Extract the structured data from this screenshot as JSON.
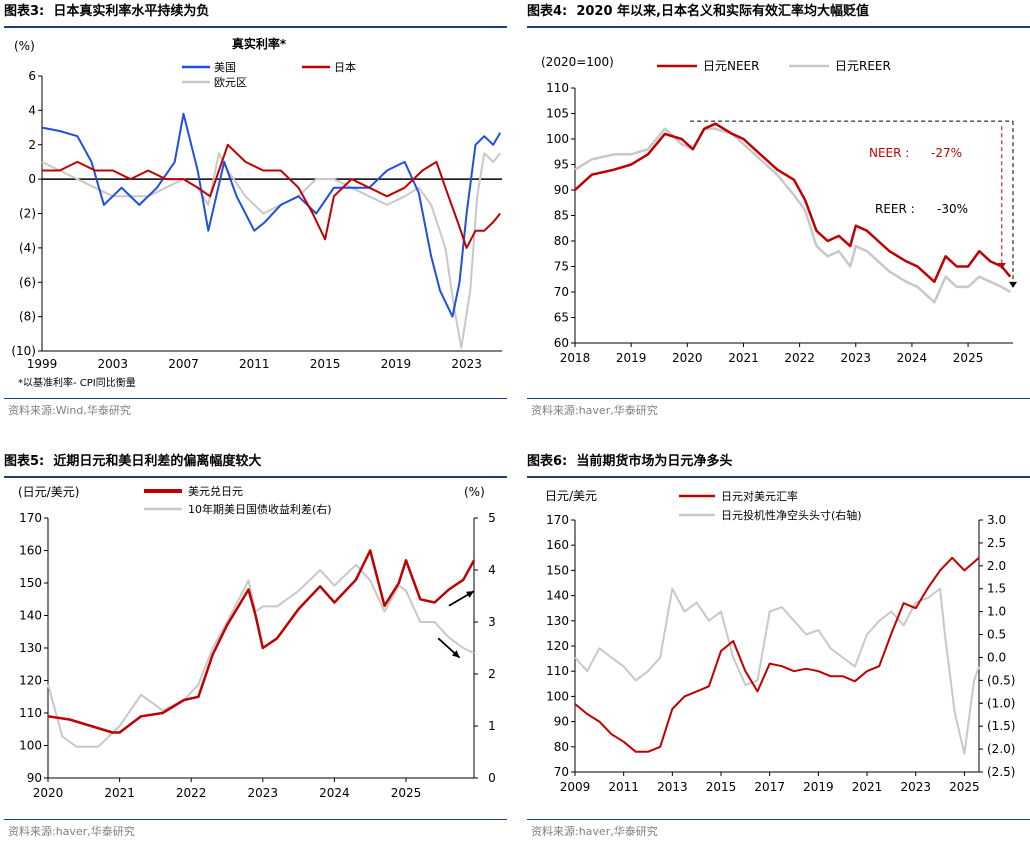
{
  "chart_data": [
    {
      "type": "line",
      "fig_label": "图表3:",
      "title": "日本真实利率水平持续为负",
      "chart_title": "真实利率*",
      "unit_label": "(%)",
      "footnote": "*以基准利率- CPI同比衡量",
      "source": "资料来源:Wind,华泰研究",
      "ylim": [
        -10,
        6
      ],
      "yticks": [
        6,
        4,
        2,
        0,
        -2,
        -4,
        -6,
        -8,
        -10
      ],
      "ytick_labels": [
        "6",
        "4",
        "2",
        "0",
        "(2)",
        "(4)",
        "(6)",
        "(8)",
        "(10)"
      ],
      "xlim": [
        1999,
        2025
      ],
      "xtick_labels": [
        "1999",
        "2003",
        "2007",
        "2011",
        "2015",
        "2019",
        "2023"
      ],
      "series": [
        {
          "name": "美国",
          "color": "#1f4fe0",
          "x": [
            1999,
            2000,
            2001,
            2001.8,
            2002.5,
            2003.5,
            2004.5,
            2005.5,
            2006.5,
            2007,
            2007.8,
            2008.4,
            2009.3,
            2010,
            2011,
            2011.6,
            2012.5,
            2013.5,
            2014.5,
            2015.5,
            2016.5,
            2017.5,
            2018.5,
            2019.5,
            2020.3,
            2021,
            2021.5,
            2022.2,
            2022.6,
            2023,
            2023.5,
            2024,
            2024.5,
            2024.9
          ],
          "values": [
            3.0,
            2.8,
            2.5,
            1.0,
            -1.5,
            -0.5,
            -1.5,
            -0.5,
            1.0,
            3.8,
            0.5,
            -3.0,
            1.0,
            -1.0,
            -3.0,
            -2.5,
            -1.5,
            -1.0,
            -2.0,
            -0.5,
            -0.5,
            -0.5,
            0.5,
            1.0,
            -0.8,
            -4.5,
            -6.5,
            -8.0,
            -6.0,
            -2.0,
            2.0,
            2.5,
            2.0,
            2.7
          ]
        },
        {
          "name": "日本",
          "color": "#c00000",
          "x": [
            1999,
            2000,
            2001,
            2002,
            2003,
            2004,
            2005,
            2006,
            2007,
            2007.8,
            2008.5,
            2009.5,
            2010.5,
            2011.5,
            2012.5,
            2013.5,
            2014.3,
            2015,
            2015.5,
            2016.5,
            2017.5,
            2018.5,
            2019.5,
            2020.5,
            2021.3,
            2021.8,
            2022.5,
            2023,
            2023.5,
            2024,
            2024.5,
            2024.9
          ],
          "values": [
            0.5,
            0.5,
            1.0,
            0.5,
            0.5,
            0.0,
            0.5,
            0.0,
            0.0,
            -0.5,
            -1.0,
            2.0,
            1.0,
            0.5,
            0.5,
            -0.5,
            -2.0,
            -3.5,
            -1.0,
            0.0,
            -0.5,
            -1.0,
            -0.5,
            0.5,
            1.0,
            -0.5,
            -2.5,
            -4.0,
            -3.0,
            -3.0,
            -2.5,
            -2.0
          ]
        },
        {
          "name": "欧元区",
          "color": "#c8c8c8",
          "x": [
            1999,
            2000,
            2001,
            2002,
            2003,
            2004,
            2005,
            2006,
            2007,
            2007.8,
            2008.4,
            2009,
            2009.5,
            2010.5,
            2011.5,
            2012.5,
            2013.5,
            2014.5,
            2015.5,
            2016.5,
            2017.5,
            2018.5,
            2019.5,
            2020.3,
            2021,
            2021.8,
            2022.3,
            2022.7,
            2023.2,
            2023.6,
            2024,
            2024.5,
            2024.9
          ],
          "values": [
            1.0,
            0.5,
            0.0,
            -0.5,
            -1.0,
            -1.0,
            -1.0,
            -0.5,
            0.0,
            -0.5,
            -1.5,
            1.5,
            0.5,
            -1.0,
            -2.0,
            -1.5,
            -1.0,
            0.0,
            0.0,
            -0.5,
            -1.0,
            -1.5,
            -1.0,
            -0.5,
            -1.5,
            -4.0,
            -7.5,
            -9.8,
            -6.5,
            -1.0,
            1.5,
            1.0,
            1.5
          ]
        }
      ]
    },
    {
      "type": "line",
      "fig_label": "图表4:",
      "title": "2020 年以来,日本名义和实际有效汇率均大幅贬值",
      "unit_label": "(2020=100)",
      "source": "资料来源:haver,华泰研究",
      "ylim": [
        60,
        110
      ],
      "yticks": [
        110,
        105,
        100,
        95,
        90,
        85,
        80,
        75,
        70,
        65,
        60
      ],
      "xlim": [
        2018,
        2025.8
      ],
      "xtick_labels": [
        "2018",
        "2019",
        "2020",
        "2021",
        "2022",
        "2023",
        "2024",
        "2025"
      ],
      "annotations": [
        {
          "text": "NEER :",
          "value_text": "-27%",
          "color": "#c00000"
        },
        {
          "text": "REER :",
          "value_text": "-30%",
          "color": "#000000"
        }
      ],
      "series": [
        {
          "name": "日元NEER",
          "color": "#c00000",
          "x": [
            2018,
            2018.3,
            2018.7,
            2019,
            2019.3,
            2019.6,
            2019.9,
            2020.1,
            2020.3,
            2020.5,
            2020.8,
            2021,
            2021.3,
            2021.6,
            2021.9,
            2022.1,
            2022.3,
            2022.5,
            2022.7,
            2022.9,
            2023,
            2023.2,
            2023.4,
            2023.6,
            2023.9,
            2024.1,
            2024.4,
            2024.6,
            2024.8,
            2025,
            2025.2,
            2025.4,
            2025.6,
            2025.75
          ],
          "values": [
            90,
            93,
            94,
            95,
            97,
            101,
            100,
            98,
            102,
            103,
            101,
            100,
            97,
            94,
            92,
            88,
            82,
            80,
            81,
            79,
            83,
            82,
            80,
            78,
            76,
            75,
            72,
            77,
            75,
            75,
            78,
            76,
            75,
            73
          ]
        },
        {
          "name": "日元REER",
          "color": "#c8c8c8",
          "x": [
            2018,
            2018.3,
            2018.7,
            2019,
            2019.3,
            2019.6,
            2019.9,
            2020.1,
            2020.3,
            2020.5,
            2020.8,
            2021,
            2021.3,
            2021.6,
            2021.9,
            2022.1,
            2022.3,
            2022.5,
            2022.7,
            2022.9,
            2023,
            2023.2,
            2023.4,
            2023.6,
            2023.9,
            2024.1,
            2024.4,
            2024.6,
            2024.8,
            2025,
            2025.2,
            2025.4,
            2025.6,
            2025.75
          ],
          "values": [
            94,
            96,
            97,
            97,
            98,
            102,
            99,
            98,
            102,
            102,
            101,
            99,
            96,
            93,
            89,
            86,
            79,
            77,
            78,
            75,
            79,
            78,
            76,
            74,
            72,
            71,
            68,
            73,
            71,
            71,
            73,
            72,
            71,
            70
          ]
        }
      ]
    },
    {
      "type": "line",
      "fig_label": "图表5:",
      "title": "近期日元和美日利差的偏离幅度较大",
      "unit_label_left": "(日元/美元)",
      "unit_label_right": "(%)",
      "source": "资料来源:haver,华泰研究",
      "ylim_left": [
        90,
        170
      ],
      "yticks_left": [
        170,
        160,
        150,
        140,
        130,
        120,
        110,
        100,
        90
      ],
      "ylim_right": [
        0,
        5
      ],
      "yticks_right": [
        5,
        4,
        3,
        2,
        1,
        0
      ],
      "xlim": [
        2020,
        2025.95
      ],
      "xtick_labels": [
        "2020",
        "2021",
        "2022",
        "2023",
        "2024",
        "2025"
      ],
      "series": [
        {
          "name": "美元兑日元",
          "axis": "left",
          "color": "#c00000",
          "x": [
            2020,
            2020.3,
            2020.6,
            2020.9,
            2021,
            2021.3,
            2021.6,
            2021.9,
            2022.1,
            2022.3,
            2022.5,
            2022.8,
            2022.9,
            2023,
            2023.2,
            2023.5,
            2023.8,
            2024,
            2024.3,
            2024.5,
            2024.7,
            2024.9,
            2025,
            2025.2,
            2025.4,
            2025.6,
            2025.8,
            2025.95
          ],
          "values": [
            109,
            108,
            106,
            104,
            104,
            109,
            110,
            114,
            115,
            128,
            137,
            148,
            140,
            130,
            133,
            142,
            149,
            144,
            151,
            160,
            143,
            150,
            157,
            145,
            144,
            148,
            151,
            157
          ]
        },
        {
          "name": "10年期美日国债收益利差(右)",
          "axis": "right",
          "color": "#c8c8c8",
          "x": [
            2020,
            2020.2,
            2020.4,
            2020.7,
            2021,
            2021.3,
            2021.6,
            2021.9,
            2022.1,
            2022.3,
            2022.5,
            2022.8,
            2022.9,
            2023,
            2023.2,
            2023.5,
            2023.8,
            2024,
            2024.3,
            2024.5,
            2024.7,
            2024.9,
            2025,
            2025.2,
            2025.4,
            2025.6,
            2025.8,
            2025.95
          ],
          "values": [
            1.8,
            0.8,
            0.6,
            0.6,
            1.0,
            1.6,
            1.3,
            1.5,
            1.8,
            2.5,
            3.0,
            3.8,
            3.2,
            3.3,
            3.3,
            3.6,
            4.0,
            3.7,
            4.1,
            3.8,
            3.2,
            3.7,
            3.6,
            3.0,
            3.0,
            2.7,
            2.5,
            2.4
          ]
        }
      ],
      "arrows": [
        {
          "from": [
            2025.6,
            143
          ],
          "to": [
            2025.95,
            147.5
          ]
        },
        {
          "from": [
            2025.45,
            133
          ],
          "to": [
            2025.75,
            127
          ]
        }
      ]
    },
    {
      "type": "line",
      "fig_label": "图表6:",
      "title": "当前期货市场为日元净多头",
      "unit_label_left": "日元/美元",
      "source": "资料来源:haver,华泰研究",
      "ylim_left": [
        70,
        170
      ],
      "yticks_left": [
        170,
        160,
        150,
        140,
        130,
        120,
        110,
        100,
        90,
        80,
        70
      ],
      "ylim_right": [
        -2.5,
        3.0
      ],
      "yticks_right": [
        3.0,
        2.5,
        2.0,
        1.5,
        1.0,
        0.5,
        0.0,
        -0.5,
        -1.0,
        -1.5,
        -2.0,
        -2.5
      ],
      "ytick_labels_right": [
        "3.0",
        "2.5",
        "2.0",
        "1.5",
        "1.0",
        "0.5",
        "0.0",
        "(0.5)",
        "(1.0)",
        "(1.5)",
        "(2.0)",
        "(2.5)"
      ],
      "xlim": [
        2009,
        2025.6
      ],
      "xtick_labels": [
        "2009",
        "2011",
        "2013",
        "2015",
        "2017",
        "2019",
        "2021",
        "2023",
        "2025"
      ],
      "series": [
        {
          "name": "日元对美元汇率",
          "axis": "left",
          "color": "#c00000",
          "x": [
            2009,
            2009.5,
            2010,
            2010.5,
            2011,
            2011.5,
            2012,
            2012.5,
            2013,
            2013.5,
            2014,
            2014.5,
            2015,
            2015.5,
            2016,
            2016.5,
            2017,
            2017.5,
            2018,
            2018.5,
            2019,
            2019.5,
            2020,
            2020.5,
            2021,
            2021.5,
            2022,
            2022.5,
            2023,
            2023.5,
            2024,
            2024.5,
            2025,
            2025.6
          ],
          "values": [
            97,
            93,
            90,
            85,
            82,
            78,
            78,
            80,
            95,
            100,
            102,
            104,
            118,
            122,
            110,
            102,
            113,
            112,
            110,
            111,
            110,
            108,
            108,
            106,
            110,
            112,
            125,
            137,
            135,
            143,
            150,
            155,
            150,
            155
          ]
        },
        {
          "name": "日元投机性净空头头寸(右轴)",
          "axis": "right",
          "color": "#c8c8c8",
          "x": [
            2009,
            2009.5,
            2010,
            2010.5,
            2011,
            2011.5,
            2012,
            2012.5,
            2013,
            2013.5,
            2014,
            2014.5,
            2015,
            2015.5,
            2016,
            2016.5,
            2017,
            2017.5,
            2018,
            2018.5,
            2019,
            2019.5,
            2020,
            2020.5,
            2021,
            2021.5,
            2022,
            2022.5,
            2023,
            2023.5,
            2024,
            2024.2,
            2024.6,
            2025,
            2025.4,
            2025.6
          ],
          "values": [
            0.0,
            -0.3,
            0.2,
            0.0,
            -0.2,
            -0.5,
            -0.3,
            0.0,
            1.5,
            1.0,
            1.2,
            0.8,
            1.0,
            0.0,
            -0.6,
            -0.5,
            1.0,
            1.1,
            0.8,
            0.5,
            0.6,
            0.2,
            0.0,
            -0.2,
            0.5,
            0.8,
            1.0,
            0.7,
            1.2,
            1.3,
            1.5,
            0.5,
            -1.2,
            -2.1,
            -0.5,
            -0.2
          ]
        }
      ]
    }
  ]
}
